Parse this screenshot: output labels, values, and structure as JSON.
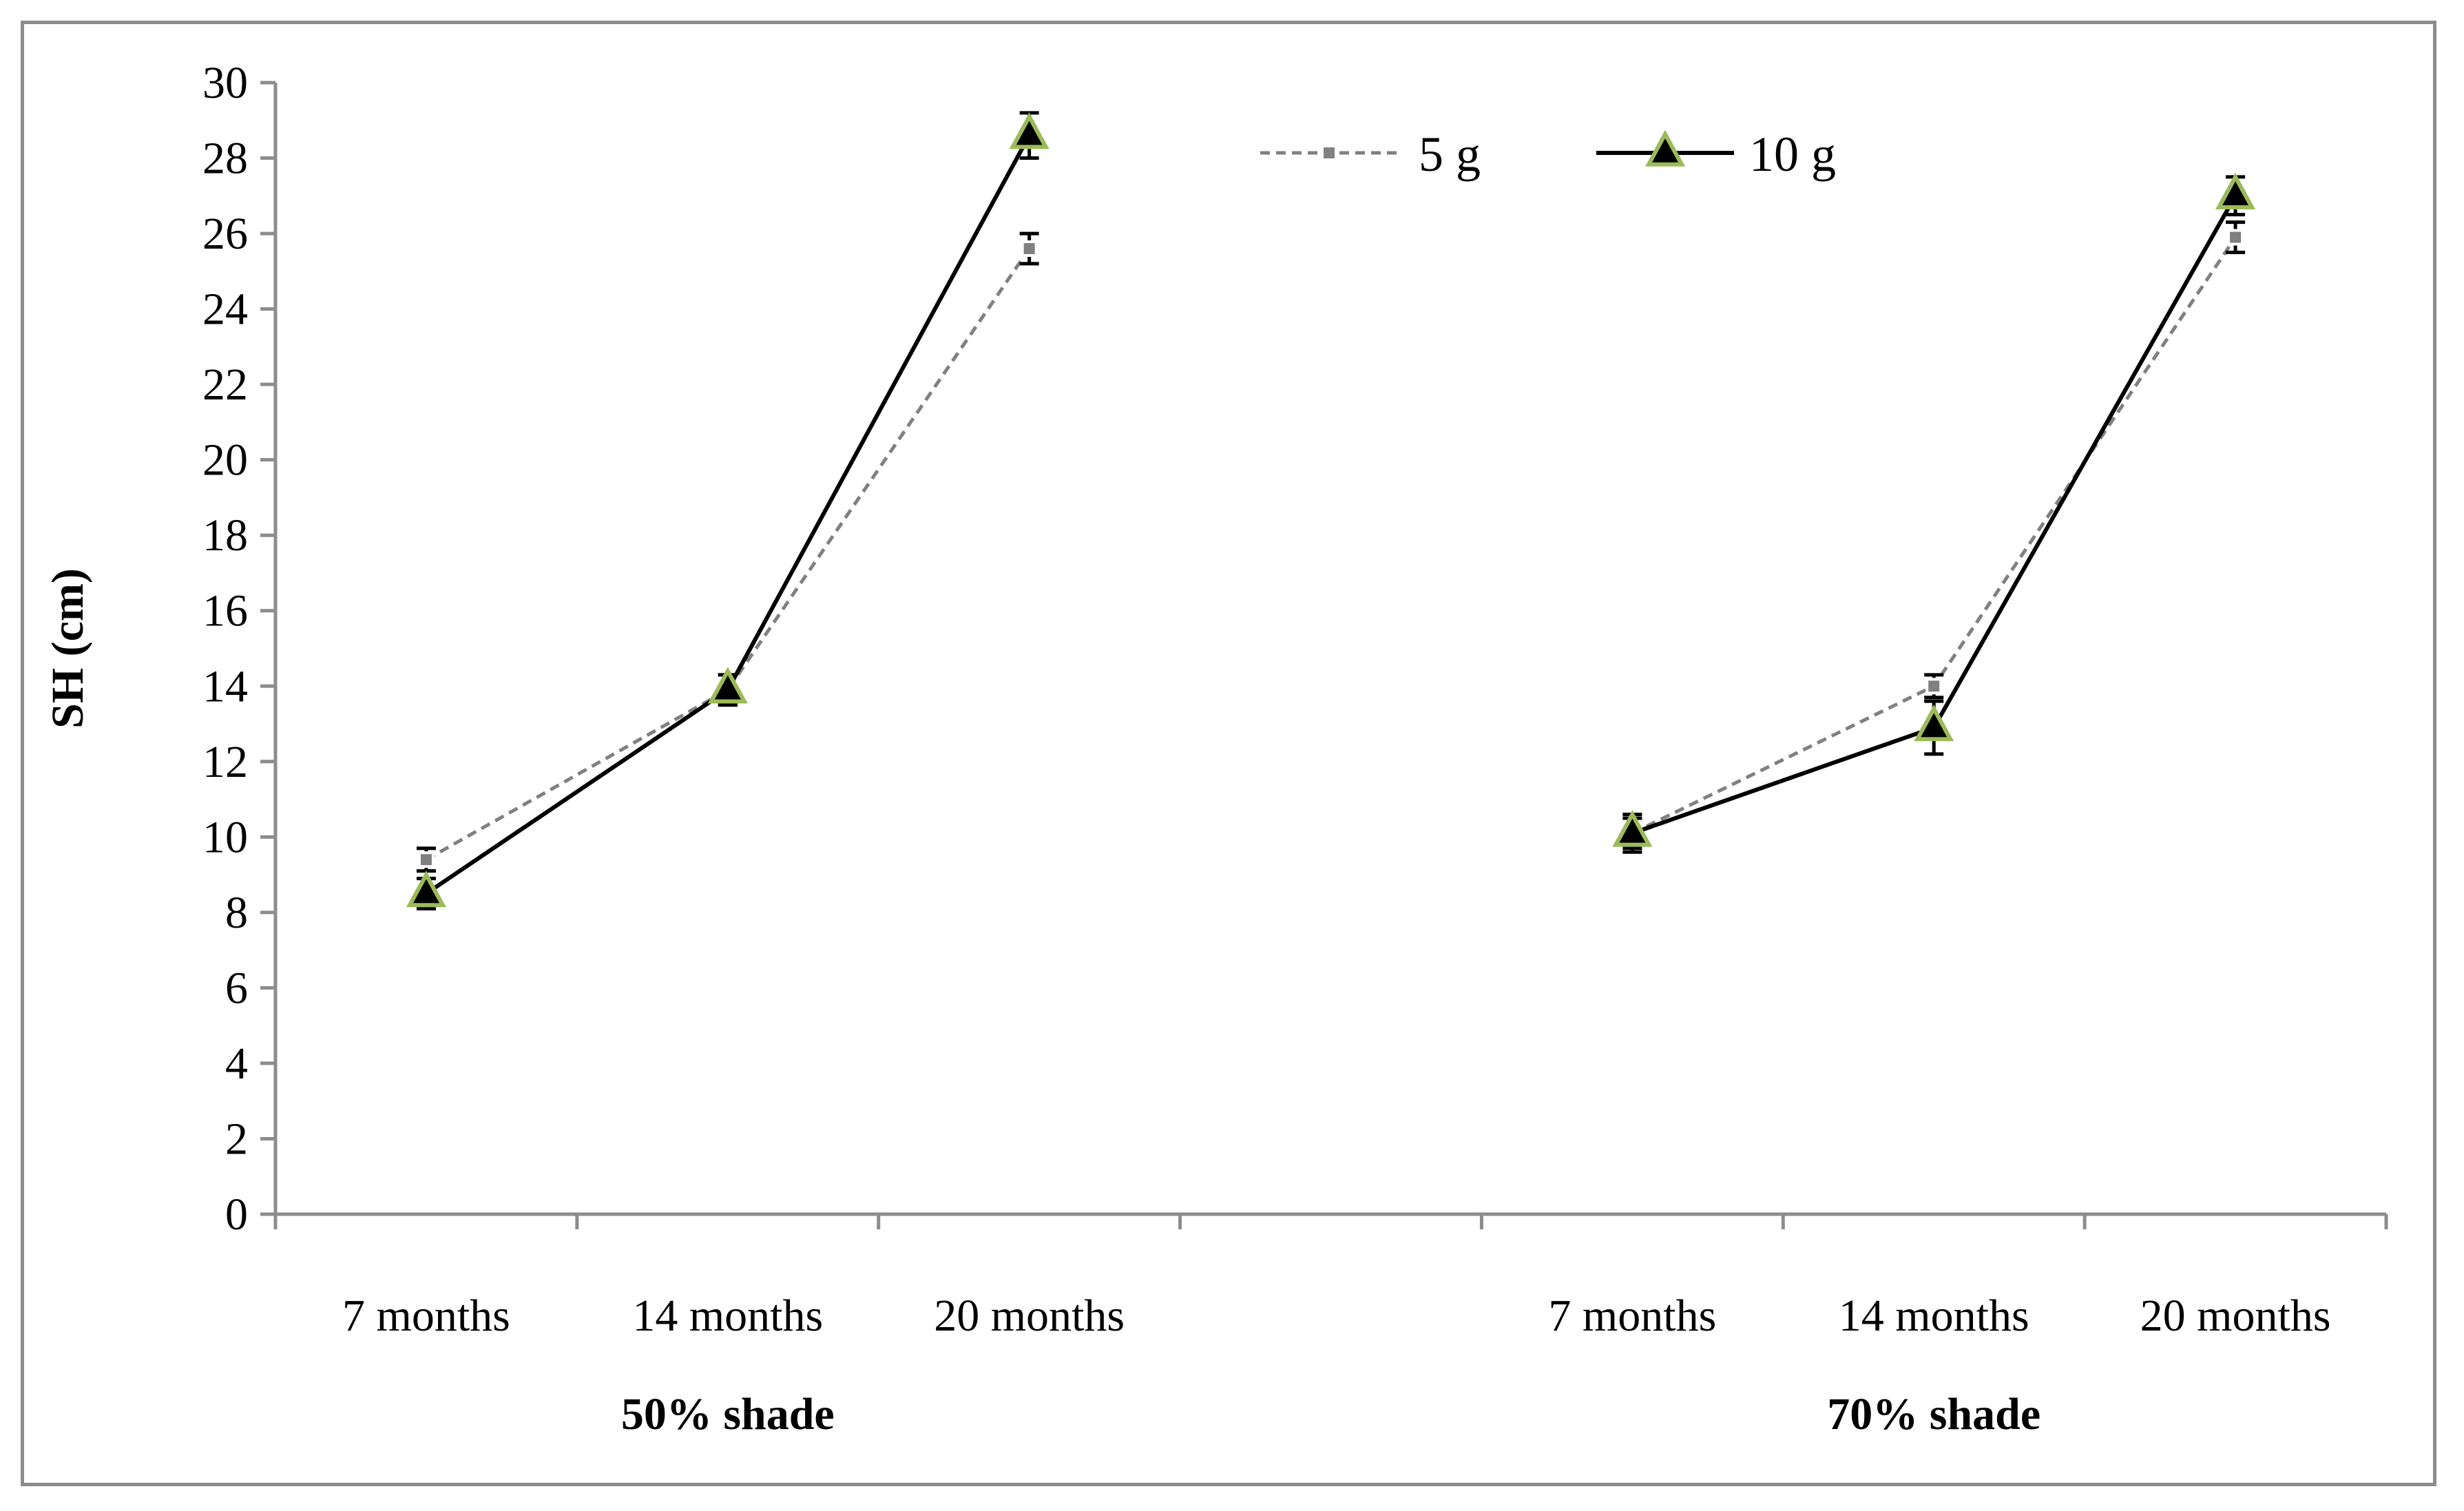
{
  "chart_data": {
    "type": "line",
    "title": "",
    "ylabel": "SH (cm)",
    "xlabel": "",
    "ylim": [
      0,
      30
    ],
    "y_ticks": [
      0,
      2,
      4,
      6,
      8,
      10,
      12,
      14,
      16,
      18,
      20,
      22,
      24,
      26,
      28,
      30
    ],
    "grid": false,
    "legend_position": "top-right",
    "groups": [
      {
        "label": "50% shade",
        "categories": [
          "7 months",
          "14 months",
          "20 months"
        ]
      },
      {
        "label": "70% shade",
        "categories": [
          "7 months",
          "14 months",
          "20 months"
        ]
      }
    ],
    "series": [
      {
        "name": "5 g",
        "style": "dashed",
        "marker": "square",
        "color": "#808080",
        "groups": [
          {
            "values": [
              9.4,
              13.9,
              25.6
            ],
            "errors": [
              0.3,
              0.4,
              0.4
            ]
          },
          {
            "values": [
              10.1,
              14.0,
              25.9
            ],
            "errors": [
              0.4,
              0.3,
              0.4
            ]
          }
        ]
      },
      {
        "name": "10 g",
        "style": "solid",
        "marker": "triangle",
        "color": "#000000",
        "marker_fill": "#000000",
        "marker_edge": "#9bbb59",
        "groups": [
          {
            "values": [
              8.5,
              13.9,
              28.6
            ],
            "errors": [
              0.4,
              0.4,
              0.6
            ]
          },
          {
            "values": [
              10.1,
              12.9,
              27.0
            ],
            "errors": [
              0.5,
              0.7,
              0.5
            ]
          }
        ]
      }
    ]
  }
}
